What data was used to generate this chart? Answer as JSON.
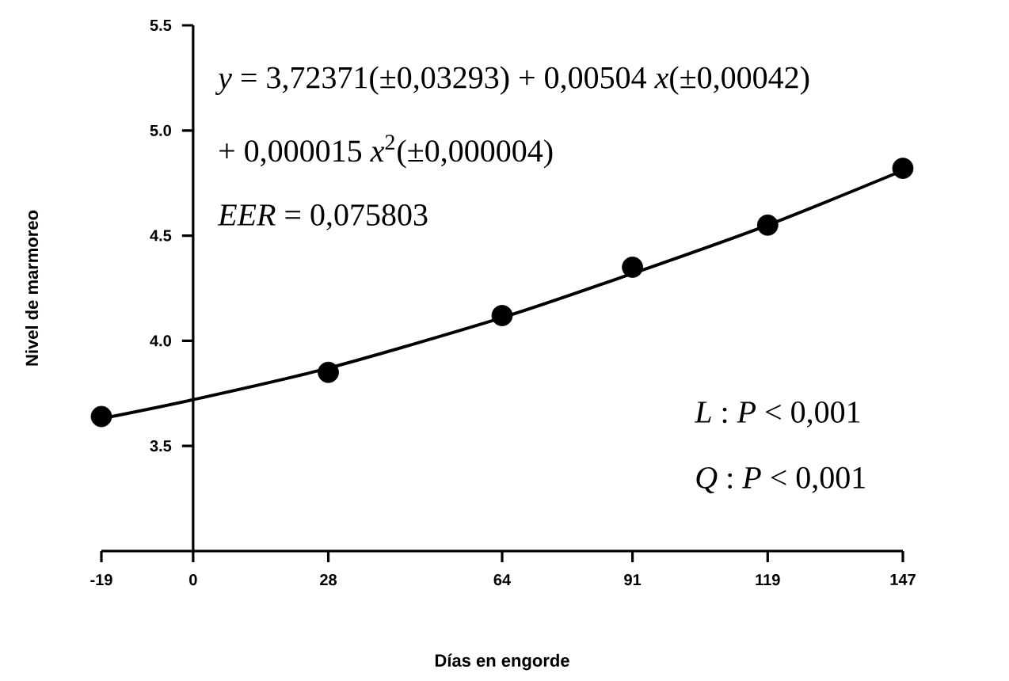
{
  "chart_data": {
    "type": "scatter",
    "xlabel": "Días en engorde",
    "ylabel": "Nivel de marmoreo",
    "xlim": [
      -19,
      147
    ],
    "ylim": [
      3.0,
      5.5
    ],
    "xticks": [
      -19,
      0,
      28,
      64,
      91,
      119,
      147
    ],
    "yticks": [
      {
        "value": 3.0,
        "label": null
      },
      3.5,
      {
        "value": 4,
        "label": "4.0"
      },
      4.5,
      {
        "value": 5,
        "label": "5.0"
      },
      5.5
    ],
    "series": [
      {
        "marker": "circle",
        "color": "#000000",
        "x": [
          -19,
          28,
          64,
          91,
          119,
          147
        ],
        "values": [
          3.64,
          3.85,
          4.12,
          4.35,
          4.55,
          4.82
        ]
      },
      {
        "type": "line",
        "marker": "none",
        "line_style": "solid",
        "color": "#000000",
        "x": [
          -19,
          0,
          28,
          64,
          91,
          119,
          147
        ],
        "values": [
          3.63,
          3.72,
          3.87,
          4.11,
          4.32,
          4.55,
          4.81
        ]
      }
    ],
    "annotations": [
      "*y* = 3,72371(±0,03293) + 0,00504 *x*(±0,00042)",
      "+ 0,000015 *x*$^{2}$(±0,000004)",
      "*EER* = 0,075803",
      "*L* : *P* < 0,001",
      "*Q* : *P* < 0,001"
    ]
  }
}
